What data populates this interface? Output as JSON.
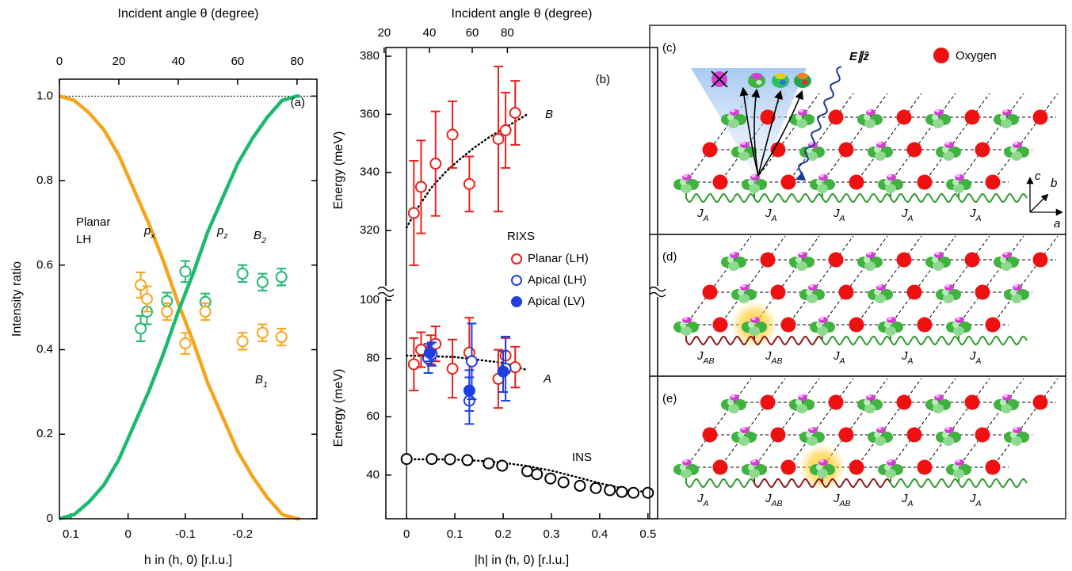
{
  "chart_data": [
    {
      "type": "line",
      "panel_label": "(a)",
      "x_label": "h in (h, 0) [r.l.u.]",
      "x2_label": "Incident angle θ (degree)",
      "y_label": "Intensity ratio",
      "xlim": [
        0.12,
        -0.33
      ],
      "xticks": [
        0.1,
        0,
        -0.1,
        -0.2
      ],
      "x2lim": [
        0,
        86.7
      ],
      "x2ticks": [
        0,
        20,
        40,
        60,
        80
      ],
      "ylim": [
        0,
        1.04
      ],
      "yticks": [
        0,
        0.2,
        0.4,
        0.6,
        0.8,
        {
          "value": 1,
          "label": "1.0"
        }
      ],
      "hline": {
        "value": 1,
        "style": "dotted"
      },
      "annotation": [
        "Planar",
        "LH"
      ],
      "series": [
        {
          "name": "p",
          "name_sub": "x",
          "color": "#f5a51c",
          "axis": "x2",
          "x": [
            0,
            5,
            10,
            15,
            20,
            25,
            30,
            35,
            40,
            45,
            50,
            55,
            60,
            65,
            70,
            75,
            80,
            81
          ],
          "values": [
            1,
            0.99,
            0.96,
            0.92,
            0.86,
            0.78,
            0.7,
            0.61,
            0.51,
            0.42,
            0.32,
            0.24,
            0.16,
            0.1,
            0.05,
            0.01,
            0,
            0
          ]
        },
        {
          "name": "p",
          "name_sub": "z",
          "color": "#1db96e",
          "axis": "x2",
          "x": [
            0,
            5,
            10,
            15,
            20,
            25,
            30,
            35,
            40,
            45,
            50,
            55,
            60,
            65,
            70,
            75,
            80,
            81
          ],
          "values": [
            0,
            0.01,
            0.04,
            0.08,
            0.14,
            0.22,
            0.3,
            0.39,
            0.49,
            0.58,
            0.68,
            0.76,
            0.84,
            0.9,
            0.95,
            0.99,
            1,
            1
          ]
        }
      ],
      "points": [
        {
          "name": "B",
          "name_sub": "2",
          "color": "#1db96e",
          "x": [
            -0.022,
            -0.033,
            -0.068,
            -0.1,
            -0.135,
            -0.2,
            -0.235,
            -0.268
          ],
          "values": [
            0.45,
            0.49,
            0.515,
            0.585,
            0.513,
            0.58,
            0.56,
            0.572
          ],
          "errors": [
            0.03,
            0.03,
            0.02,
            0.025,
            0.02,
            0.02,
            0.02,
            0.02
          ]
        },
        {
          "name": "B",
          "name_sub": "1",
          "color": "#f5a51c",
          "x": [
            -0.022,
            -0.033,
            -0.068,
            -0.1,
            -0.135,
            -0.2,
            -0.235,
            -0.268
          ],
          "values": [
            0.553,
            0.52,
            0.49,
            0.415,
            0.49,
            0.42,
            0.44,
            0.43
          ],
          "errors": [
            0.03,
            0.03,
            0.02,
            0.025,
            0.02,
            0.02,
            0.02,
            0.02
          ]
        }
      ]
    },
    {
      "type": "scatter",
      "panel_label": "(b)",
      "x_label": "|h| in (h, 0) [r.l.u.]",
      "x2_label": "Incident angle θ (degree)",
      "y_label": "Energy (meV)",
      "xlim": [
        -0.043,
        0.52
      ],
      "xticks": [
        0,
        0.1,
        0.2,
        0.3,
        0.4,
        0.5
      ],
      "x2ticks": [
        20,
        40,
        60,
        80
      ],
      "ylim": [
        25,
        103
      ],
      "yticks": [
        40,
        60,
        80,
        100
      ],
      "ylim_upper": [
        299,
        383
      ],
      "yticks_upper": [
        320,
        340,
        360,
        380
      ],
      "vline": 0,
      "legend_title": "RIXS",
      "series": [
        {
          "name": "Planar (LH)",
          "color": "#e8201a",
          "marker": "open",
          "x": [
            0.015,
            0.03,
            0.05,
            0.06,
            0.095,
            0.13,
            0.19,
            0.205,
            0.225
          ],
          "values": [
            78,
            83,
            83,
            85,
            76.5,
            82,
            73,
            81,
            77
          ],
          "errors": [
            9,
            6,
            5,
            6,
            10,
            12,
            10,
            6,
            7
          ],
          "x_upper": [
            0.015,
            0.03,
            0.06,
            0.095,
            0.13,
            0.19,
            0.205,
            0.225
          ],
          "values_upper": [
            326,
            335,
            343,
            353,
            336,
            351.5,
            354.5,
            360.5
          ],
          "errors_upper": [
            18,
            16,
            18,
            11.5,
            9.5,
            25,
            13,
            11
          ]
        },
        {
          "name": "Apical (LH)",
          "color": "#1f3fe0",
          "marker": "open",
          "x": [
            0.045,
            0.052,
            0.13,
            0.135,
            0.205
          ],
          "values": [
            80,
            81.5,
            65.5,
            79,
            76.5
          ],
          "errors": [
            5,
            4,
            8,
            13,
            11
          ]
        },
        {
          "name": "Apical (LV)",
          "color": "#1f3fe0",
          "marker": "filled",
          "x": [
            0.048,
            0.13,
            0.2
          ],
          "values": [
            82,
            69,
            75.5
          ],
          "errors": [
            3,
            7,
            7
          ]
        },
        {
          "name": "INS",
          "color": "#000000",
          "marker": "open",
          "x": [
            0,
            0.052,
            0.09,
            0.126,
            0.17,
            0.198,
            0.25,
            0.27,
            0.298,
            0.325,
            0.359,
            0.392,
            0.421,
            0.446,
            0.47,
            0.5
          ],
          "values": [
            45.5,
            45.5,
            45.4,
            45.1,
            44,
            43.2,
            41.3,
            40.3,
            38.8,
            37.5,
            36.3,
            35.5,
            34.8,
            34.2,
            33.9,
            33.9
          ]
        }
      ],
      "fits": [
        {
          "label": "B",
          "axis": "upper",
          "x": [
            0,
            0.02,
            0.05,
            0.08,
            0.11,
            0.14,
            0.17,
            0.2,
            0.23,
            0.25
          ],
          "values": [
            321,
            327,
            334.5,
            340,
            344.5,
            348.5,
            352,
            355,
            358,
            360
          ]
        },
        {
          "label": "A",
          "x": [
            0,
            0.1,
            0.2,
            0.25
          ],
          "values": [
            81,
            80.5,
            78.5,
            76
          ]
        },
        {
          "x": [
            0,
            0.05,
            0.1,
            0.15,
            0.2,
            0.25,
            0.3,
            0.35,
            0.4,
            0.45,
            0.5
          ],
          "values": [
            45.4,
            45.4,
            45.3,
            44.9,
            44.2,
            43.1,
            41.5,
            39.4,
            37.2,
            35.3,
            34
          ]
        }
      ]
    }
  ],
  "diagrams": {
    "c": {
      "label": "(c)",
      "field": "E∥ẑ",
      "oxygen": "Oxygen",
      "axes": {
        "a": "a",
        "b": "b",
        "c": "c"
      },
      "couplings": [
        {
          "text": "J",
          "sub": "A"
        },
        {
          "text": "J",
          "sub": "A"
        },
        {
          "text": "J",
          "sub": "A"
        },
        {
          "text": "J",
          "sub": "A"
        },
        {
          "text": "J",
          "sub": "A"
        }
      ]
    },
    "d": {
      "label": "(d)",
      "couplings": [
        {
          "text": "J",
          "sub": "AB"
        },
        {
          "text": "J",
          "sub": "AB"
        },
        {
          "text": "J",
          "sub": "A"
        },
        {
          "text": "J",
          "sub": "A"
        },
        {
          "text": "J",
          "sub": "A"
        }
      ]
    },
    "e": {
      "label": "(e)",
      "couplings": [
        {
          "text": "J",
          "sub": "A"
        },
        {
          "text": "J",
          "sub": "AB"
        },
        {
          "text": "J",
          "sub": "AB"
        },
        {
          "text": "J",
          "sub": "A"
        },
        {
          "text": "J",
          "sub": "A"
        }
      ]
    }
  }
}
